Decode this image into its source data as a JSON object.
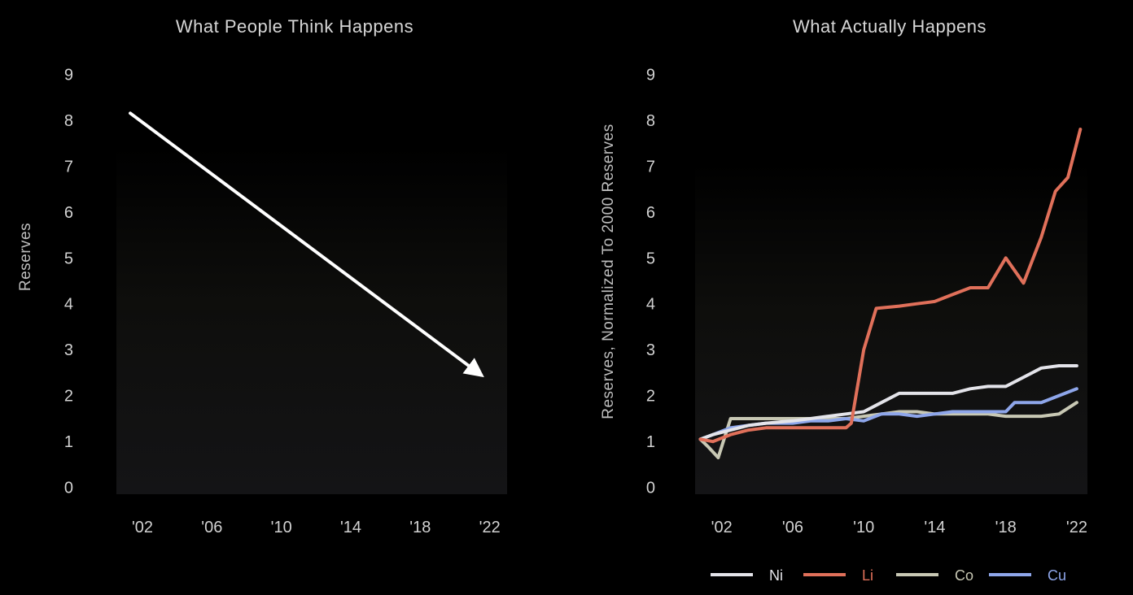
{
  "chart_data": [
    {
      "type": "line",
      "title": "What People Think Happens",
      "xlabel": "",
      "ylabel": "Reserves",
      "yticks": [
        0,
        1,
        2,
        3,
        4,
        5,
        6,
        7,
        8,
        9
      ],
      "xticks": [
        2002,
        2006,
        2010,
        2014,
        2018,
        2022
      ],
      "xtick_labels": [
        "'02",
        "'06",
        "'10",
        "'14",
        "'18",
        "'22"
      ],
      "xlim": [
        2000.5,
        2023
      ],
      "ylim": [
        -0.2,
        9.2
      ],
      "arrow": {
        "x": [
          2001.3,
          2021.5
        ],
        "y": [
          8.15,
          2.45
        ],
        "color": "#ffffff"
      },
      "grid": false,
      "background_color": "#0c0c0e"
    },
    {
      "type": "line",
      "title": "What Actually Happens",
      "xlabel": "",
      "ylabel": "Reserves, Normalized To 2000 Reserves",
      "yticks": [
        0,
        1,
        2,
        3,
        4,
        5,
        6,
        7,
        8,
        9
      ],
      "xticks": [
        2002,
        2006,
        2010,
        2014,
        2018,
        2022
      ],
      "xtick_labels": [
        "'02",
        "'06",
        "'10",
        "'14",
        "'18",
        "'22"
      ],
      "xlim": [
        2000.5,
        2022.6
      ],
      "ylim": [
        -0.2,
        9.2
      ],
      "grid": false,
      "legend": "bottom",
      "background_color": "#0c0c0e",
      "series": [
        {
          "name": "Ni",
          "color": "#e4e4ea",
          "x": [
            2000.8,
            2001.5,
            2002.5,
            2003.5,
            2004.5,
            2006,
            2007,
            2008,
            2009,
            2010,
            2011,
            2012,
            2013,
            2014,
            2015,
            2016,
            2017,
            2018,
            2019,
            2020,
            2021,
            2022
          ],
          "y": [
            1.05,
            1.15,
            1.25,
            1.35,
            1.4,
            1.45,
            1.5,
            1.55,
            1.6,
            1.65,
            1.85,
            2.05,
            2.05,
            2.05,
            2.05,
            2.15,
            2.2,
            2.2,
            2.4,
            2.6,
            2.65,
            2.65
          ]
        },
        {
          "name": "Li",
          "color": "#e0705a",
          "x": [
            2000.8,
            2001.5,
            2002.5,
            2003.5,
            2004.5,
            2006,
            2007,
            2008,
            2009,
            2009.3,
            2010,
            2010.7,
            2012,
            2013,
            2014,
            2015,
            2016,
            2017,
            2018,
            2019,
            2020,
            2020.8,
            2021.5,
            2022.2
          ],
          "y": [
            1.05,
            1.0,
            1.15,
            1.25,
            1.3,
            1.3,
            1.3,
            1.3,
            1.3,
            1.4,
            3.0,
            3.9,
            3.95,
            4.0,
            4.05,
            4.2,
            4.35,
            4.35,
            5.0,
            4.45,
            5.45,
            6.45,
            6.75,
            7.8
          ]
        },
        {
          "name": "Co",
          "color": "#c8c8b4",
          "x": [
            2000.8,
            2001.2,
            2001.8,
            2002.5,
            2003.5,
            2005,
            2006,
            2007,
            2008,
            2009,
            2010,
            2011,
            2012,
            2013,
            2014,
            2015,
            2016,
            2017,
            2018,
            2019,
            2020,
            2021,
            2022
          ],
          "y": [
            1.05,
            0.9,
            0.65,
            1.5,
            1.5,
            1.5,
            1.5,
            1.5,
            1.5,
            1.5,
            1.55,
            1.6,
            1.65,
            1.65,
            1.6,
            1.6,
            1.6,
            1.6,
            1.55,
            1.55,
            1.55,
            1.6,
            1.85
          ]
        },
        {
          "name": "Cu",
          "color": "#8ea6ea",
          "x": [
            2000.8,
            2001.5,
            2002.5,
            2003.5,
            2004.5,
            2006,
            2007,
            2008,
            2009,
            2010,
            2011,
            2012,
            2013,
            2014,
            2015,
            2016,
            2017,
            2018,
            2018.5,
            2019,
            2020,
            2021,
            2022
          ],
          "y": [
            1.05,
            1.15,
            1.3,
            1.35,
            1.4,
            1.4,
            1.45,
            1.45,
            1.5,
            1.45,
            1.6,
            1.6,
            1.55,
            1.6,
            1.65,
            1.65,
            1.65,
            1.65,
            1.85,
            1.85,
            1.85,
            2.0,
            2.15
          ]
        }
      ]
    }
  ]
}
